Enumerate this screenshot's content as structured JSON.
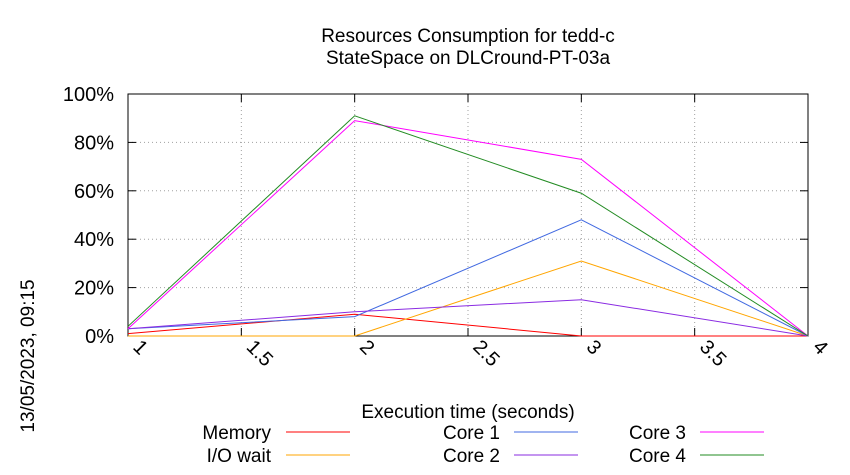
{
  "timestamp": "13/05/2023, 09:15",
  "chart_data": {
    "type": "line",
    "title": [
      "Resources Consumption for tedd-c",
      "StateSpace on DLCround-PT-03a"
    ],
    "xlabel": "Execution time (seconds)",
    "ylabel": "",
    "xlim": [
      1,
      4
    ],
    "ylim": [
      0,
      100
    ],
    "x_ticks": [
      1,
      1.5,
      2,
      2.5,
      3,
      3.5,
      4
    ],
    "x_tick_labels": [
      "1",
      "1.5",
      "2",
      "2.5",
      "3",
      "3.5",
      "4"
    ],
    "y_ticks": [
      0,
      20,
      40,
      60,
      80,
      100
    ],
    "y_tick_labels": [
      "0%",
      "20%",
      "40%",
      "60%",
      "80%",
      "100%"
    ],
    "grid": true,
    "legend_position": "bottom",
    "series": [
      {
        "name": "Memory",
        "color": "#ff0000",
        "x": [
          1,
          2,
          3,
          4
        ],
        "values": [
          1,
          9,
          0,
          0
        ]
      },
      {
        "name": "I/O wait",
        "color": "#ffa500",
        "x": [
          1,
          2,
          3,
          4
        ],
        "values": [
          0,
          0,
          31,
          0
        ]
      },
      {
        "name": "Core 1",
        "color": "#4169e1",
        "x": [
          1,
          2,
          3,
          4
        ],
        "values": [
          3,
          8,
          48,
          0
        ]
      },
      {
        "name": "Core 2",
        "color": "#8a2be2",
        "x": [
          1,
          2,
          3,
          4
        ],
        "values": [
          3,
          10,
          15,
          0
        ]
      },
      {
        "name": "Core 3",
        "color": "#ff00ff",
        "x": [
          1,
          2,
          3,
          4
        ],
        "values": [
          3,
          89,
          73,
          0
        ]
      },
      {
        "name": "Core 4",
        "color": "#228b22",
        "x": [
          1,
          2,
          3,
          4
        ],
        "values": [
          4,
          91,
          59,
          0
        ]
      }
    ]
  }
}
